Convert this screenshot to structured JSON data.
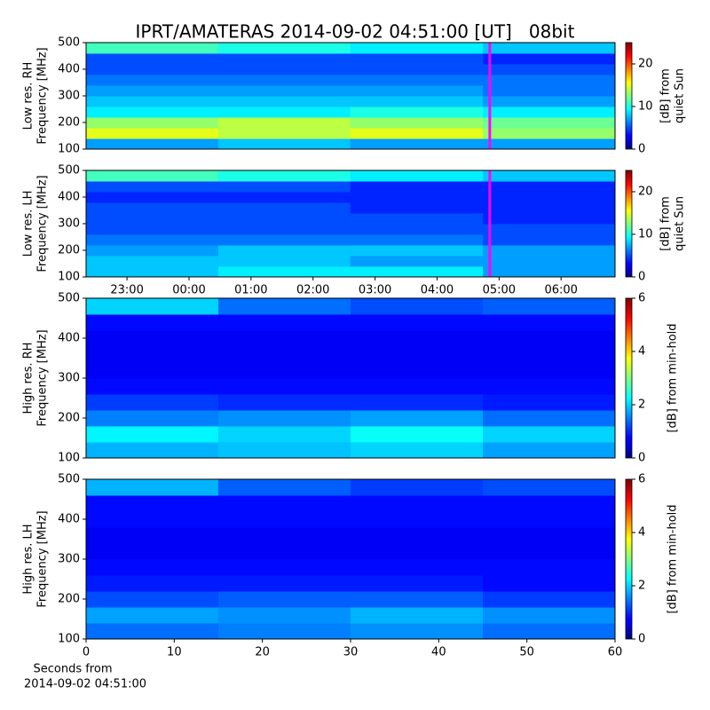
{
  "chart_data": [
    {
      "type": "heatmap",
      "title": "IPRT/AMATERAS 2014-09-02 04:51:00 [UT]   08bit",
      "ylabel": [
        "Low res. RH",
        "Frequency [MHz]"
      ],
      "clabel": [
        "[dB] from",
        "quiet Sun"
      ],
      "xlim": [
        22.34,
        30.87
      ],
      "ylim": [
        100,
        500
      ],
      "yticks": [
        100,
        200,
        300,
        400,
        500
      ],
      "clim": [
        0,
        25
      ],
      "cticks": [
        0,
        10,
        20
      ],
      "colormap": "jet",
      "vline": 28.85,
      "vline_color": "#ff00ff",
      "x": [
        22.34,
        24.47,
        26.6,
        28.74,
        30.87
      ],
      "y": [
        100,
        140,
        180,
        220,
        260,
        300,
        340,
        380,
        420,
        460,
        500
      ],
      "values": [
        [
          7,
          8,
          7,
          7
        ],
        [
          15,
          14,
          15,
          13
        ],
        [
          13,
          14,
          13,
          12
        ],
        [
          9,
          9,
          10,
          9
        ],
        [
          8,
          8,
          8,
          7
        ],
        [
          7,
          7,
          7,
          6
        ],
        [
          6,
          6,
          6,
          6
        ],
        [
          5,
          5,
          5,
          5
        ],
        [
          5,
          5,
          5,
          4
        ],
        [
          11,
          10,
          9,
          8
        ]
      ]
    },
    {
      "type": "heatmap",
      "ylabel": [
        "Low res. LH",
        "Frequency [MHz]"
      ],
      "clabel": [
        "[dB] from",
        "quiet Sun"
      ],
      "xlim": [
        22.34,
        30.87
      ],
      "ylim": [
        100,
        500
      ],
      "yticks": [
        100,
        200,
        300,
        400,
        500
      ],
      "xticks": [
        {
          "value": 23,
          "label": "23:00"
        },
        {
          "value": 24,
          "label": "00:00"
        },
        {
          "value": 25,
          "label": "01:00"
        },
        {
          "value": 26,
          "label": "02:00"
        },
        {
          "value": 27,
          "label": "03:00"
        },
        {
          "value": 28,
          "label": "04:00"
        },
        {
          "value": 29,
          "label": "05:00"
        },
        {
          "value": 30,
          "label": "06:00"
        }
      ],
      "clim": [
        0,
        25
      ],
      "cticks": [
        0,
        10,
        20
      ],
      "colormap": "jet",
      "vline": 28.85,
      "vline_color": "#ff00ff",
      "x": [
        22.34,
        24.47,
        26.6,
        28.74,
        30.87
      ],
      "y": [
        100,
        140,
        180,
        220,
        260,
        300,
        340,
        380,
        420,
        460,
        500
      ],
      "values": [
        [
          8,
          9,
          9,
          7
        ],
        [
          8,
          8,
          7,
          7
        ],
        [
          7,
          8,
          8,
          7
        ],
        [
          6,
          6,
          6,
          5
        ],
        [
          5,
          5,
          5,
          5
        ],
        [
          5,
          5,
          5,
          4
        ],
        [
          5,
          5,
          4,
          4
        ],
        [
          4,
          4,
          4,
          4
        ],
        [
          5,
          5,
          4,
          4
        ],
        [
          11,
          10,
          9,
          8
        ]
      ]
    },
    {
      "type": "heatmap",
      "ylabel": [
        "High res. RH",
        "Frequency [MHz]"
      ],
      "clabel": [
        "[dB] from min-hold"
      ],
      "xlim": [
        0,
        60
      ],
      "ylim": [
        100,
        500
      ],
      "yticks": [
        100,
        200,
        300,
        400,
        500
      ],
      "clim": [
        0,
        6
      ],
      "cticks": [
        0,
        2,
        4,
        6
      ],
      "colormap": "jet",
      "x": [
        0,
        15,
        30,
        45,
        60
      ],
      "y": [
        100,
        140,
        180,
        220,
        260,
        300,
        340,
        380,
        420,
        460,
        500
      ],
      "values": [
        [
          1.8,
          1.9,
          2.0,
          1.7
        ],
        [
          2.2,
          2.0,
          2.3,
          2.0
        ],
        [
          1.5,
          1.6,
          1.7,
          1.4
        ],
        [
          1.1,
          1.0,
          1.0,
          0.9
        ],
        [
          0.8,
          0.8,
          0.8,
          0.8
        ],
        [
          0.7,
          0.7,
          0.7,
          0.7
        ],
        [
          0.7,
          0.7,
          0.7,
          0.7
        ],
        [
          0.7,
          0.7,
          0.7,
          0.7
        ],
        [
          0.8,
          0.8,
          0.8,
          0.8
        ],
        [
          2.0,
          1.4,
          1.2,
          1.3
        ]
      ]
    },
    {
      "type": "heatmap",
      "ylabel": [
        "High res. LH",
        "Frequency [MHz]"
      ],
      "clabel": [
        "[dB] from min-hold"
      ],
      "xlabel": [
        "Seconds from",
        "2014-09-02 04:51:00"
      ],
      "xlim": [
        0,
        60
      ],
      "ylim": [
        100,
        500
      ],
      "yticks": [
        100,
        200,
        300,
        400,
        500
      ],
      "xticks": [
        0,
        10,
        20,
        30,
        40,
        50,
        60
      ],
      "clim": [
        0,
        6
      ],
      "cticks": [
        0,
        2,
        4,
        6
      ],
      "colormap": "jet",
      "x": [
        0,
        15,
        30,
        45,
        60
      ],
      "y": [
        100,
        140,
        180,
        220,
        260,
        300,
        340,
        380,
        420,
        460,
        500
      ],
      "values": [
        [
          1.4,
          1.5,
          1.6,
          1.4
        ],
        [
          1.7,
          1.6,
          1.8,
          1.6
        ],
        [
          1.2,
          1.3,
          1.3,
          1.1
        ],
        [
          0.9,
          0.9,
          0.9,
          0.8
        ],
        [
          0.8,
          0.8,
          0.8,
          0.8
        ],
        [
          0.7,
          0.7,
          0.7,
          0.7
        ],
        [
          0.7,
          0.7,
          0.7,
          0.7
        ],
        [
          0.8,
          0.8,
          0.8,
          0.8
        ],
        [
          0.8,
          0.8,
          0.8,
          0.8
        ],
        [
          1.8,
          1.3,
          1.1,
          1.2
        ]
      ]
    }
  ]
}
